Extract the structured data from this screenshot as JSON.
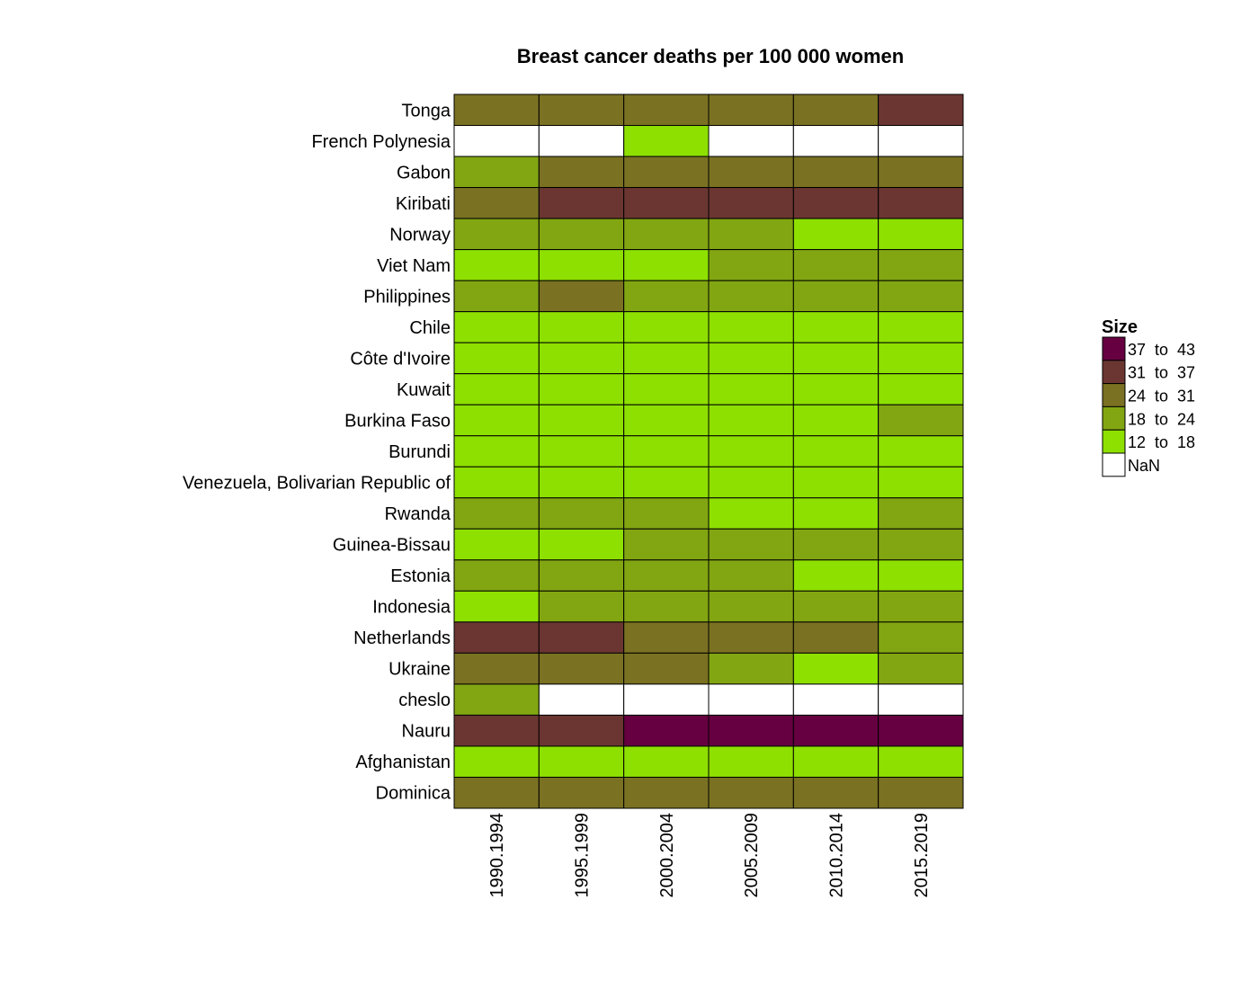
{
  "chart_data": {
    "type": "heatmap",
    "title": "Breast cancer deaths per 100 000 women",
    "columns": [
      "1990.1994",
      "1995.1999",
      "2000.2004",
      "2005.2009",
      "2010.2014",
      "2015.2019"
    ],
    "rows": [
      "Tonga",
      "French Polynesia",
      "Gabon",
      "Kiribati",
      "Norway",
      "Viet Nam",
      "Philippines",
      "Chile",
      "Côte d'Ivoire",
      "Kuwait",
      "Burkina Faso",
      "Burundi",
      "Venezuela, Bolivarian Republic of",
      "Rwanda",
      "Guinea-Bissau",
      "Estonia",
      "Indonesia",
      "Netherlands",
      "Ukraine",
      "cheslo",
      "Nauru",
      "Afghanistan",
      "Dominica"
    ],
    "bins": [
      {
        "label": "37  to  43",
        "min": 37,
        "max": 43,
        "color": "#660041"
      },
      {
        "label": "31  to  37",
        "min": 31,
        "max": 37,
        "color": "#6b3632"
      },
      {
        "label": "24  to  31",
        "min": 24,
        "max": 31,
        "color": "#7a7122"
      },
      {
        "label": "18  to  24",
        "min": 18,
        "max": 24,
        "color": "#82a612"
      },
      {
        "label": "12  to  18",
        "min": 12,
        "max": 18,
        "color": "#8ee000"
      },
      {
        "label": "NaN",
        "min": null,
        "max": null,
        "color": "#ffffff"
      }
    ],
    "values": [
      [
        "24  to  31",
        "24  to  31",
        "24  to  31",
        "24  to  31",
        "24  to  31",
        "31  to  37"
      ],
      [
        "NaN",
        "NaN",
        "12  to  18",
        "NaN",
        "NaN",
        "NaN"
      ],
      [
        "18  to  24",
        "24  to  31",
        "24  to  31",
        "24  to  31",
        "24  to  31",
        "24  to  31"
      ],
      [
        "24  to  31",
        "31  to  37",
        "31  to  37",
        "31  to  37",
        "31  to  37",
        "31  to  37"
      ],
      [
        "18  to  24",
        "18  to  24",
        "18  to  24",
        "18  to  24",
        "12  to  18",
        "12  to  18"
      ],
      [
        "12  to  18",
        "12  to  18",
        "12  to  18",
        "18  to  24",
        "18  to  24",
        "18  to  24"
      ],
      [
        "18  to  24",
        "24  to  31",
        "18  to  24",
        "18  to  24",
        "18  to  24",
        "18  to  24"
      ],
      [
        "12  to  18",
        "12  to  18",
        "12  to  18",
        "12  to  18",
        "12  to  18",
        "12  to  18"
      ],
      [
        "12  to  18",
        "12  to  18",
        "12  to  18",
        "12  to  18",
        "12  to  18",
        "12  to  18"
      ],
      [
        "12  to  18",
        "12  to  18",
        "12  to  18",
        "12  to  18",
        "12  to  18",
        "12  to  18"
      ],
      [
        "12  to  18",
        "12  to  18",
        "12  to  18",
        "12  to  18",
        "12  to  18",
        "18  to  24"
      ],
      [
        "12  to  18",
        "12  to  18",
        "12  to  18",
        "12  to  18",
        "12  to  18",
        "12  to  18"
      ],
      [
        "12  to  18",
        "12  to  18",
        "12  to  18",
        "12  to  18",
        "12  to  18",
        "12  to  18"
      ],
      [
        "18  to  24",
        "18  to  24",
        "18  to  24",
        "12  to  18",
        "12  to  18",
        "18  to  24"
      ],
      [
        "12  to  18",
        "12  to  18",
        "18  to  24",
        "18  to  24",
        "18  to  24",
        "18  to  24"
      ],
      [
        "18  to  24",
        "18  to  24",
        "18  to  24",
        "18  to  24",
        "12  to  18",
        "12  to  18"
      ],
      [
        "12  to  18",
        "18  to  24",
        "18  to  24",
        "18  to  24",
        "18  to  24",
        "18  to  24"
      ],
      [
        "31  to  37",
        "31  to  37",
        "24  to  31",
        "24  to  31",
        "24  to  31",
        "18  to  24"
      ],
      [
        "24  to  31",
        "24  to  31",
        "24  to  31",
        "18  to  24",
        "12  to  18",
        "18  to  24"
      ],
      [
        "18  to  24",
        "NaN",
        "NaN",
        "NaN",
        "NaN",
        "NaN"
      ],
      [
        "31  to  37",
        "31  to  37",
        "37  to  43",
        "37  to  43",
        "37  to  43",
        "37  to  43"
      ],
      [
        "12  to  18",
        "12  to  18",
        "12  to  18",
        "12  to  18",
        "12  to  18",
        "12  to  18"
      ],
      [
        "24  to  31",
        "24  to  31",
        "24  to  31",
        "24  to  31",
        "24  to  31",
        "24  to  31"
      ]
    ],
    "legend": {
      "title": "Size",
      "placement": "right"
    }
  }
}
